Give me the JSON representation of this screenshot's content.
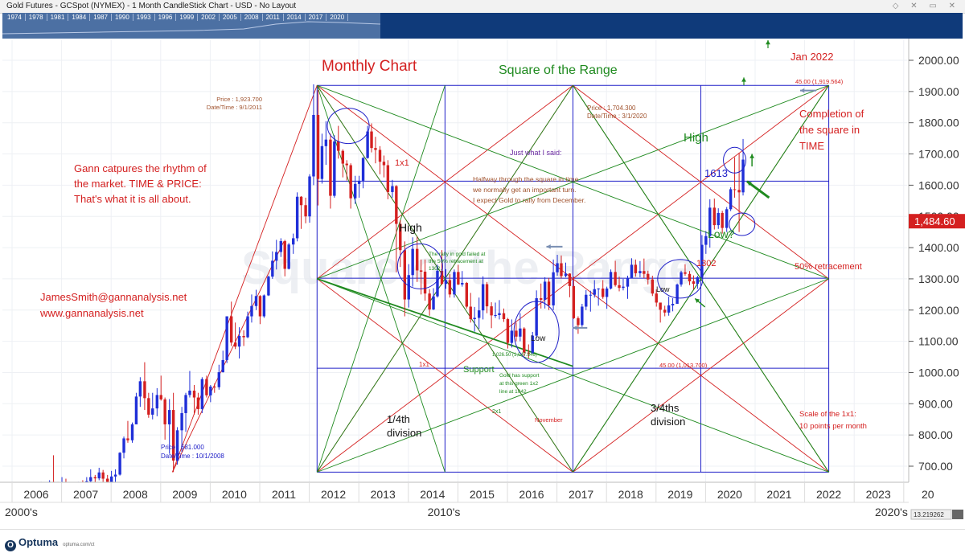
{
  "window": {
    "title": "Gold Futures - GCSpot (NYMEX) - 1 Month CandleStick Chart - USD - No Layout"
  },
  "overview": {
    "years": [
      "1974",
      "1978",
      "1981",
      "1984",
      "1987",
      "1990",
      "1993",
      "1996",
      "1999",
      "2002",
      "2005",
      "2008",
      "2011",
      "2014",
      "2017",
      "2020"
    ]
  },
  "chart_data": {
    "type": "candlestick",
    "interval": "1 Month",
    "instrument": "Gold Futures - GCSpot (NYMEX)",
    "currency": "USD",
    "y_axis": {
      "min": 640,
      "max": 2030,
      "ticks": [
        700,
        800,
        900,
        1000,
        1100,
        1200,
        1300,
        1400,
        1500,
        1600,
        1700,
        1800,
        1900,
        2000
      ],
      "labels": [
        "700.00",
        "800.00",
        "900.00",
        "1000.00",
        "1100.00",
        "1200.00",
        "1300.00",
        "1400.00",
        "1500.00",
        "1600.00",
        "1700.00",
        "1800.00",
        "1900.00",
        "2000.00"
      ]
    },
    "x_axis": {
      "years": [
        "2006",
        "2007",
        "2008",
        "2009",
        "2010",
        "2011",
        "2012",
        "2013",
        "2014",
        "2015",
        "2016",
        "2017",
        "2018",
        "2019",
        "2020",
        "2021",
        "2022",
        "2023",
        "20"
      ],
      "decades": [
        "2000's",
        "2010's",
        "2020's"
      ]
    },
    "grid": true,
    "last_price": "1,484.60",
    "scale_value": "13.219262",
    "ohlc_monthly": [
      [
        2005.94,
        513,
        565,
        505,
        562
      ],
      [
        2006.02,
        570,
        575,
        545,
        566
      ],
      [
        2006.1,
        566,
        650,
        555,
        582
      ],
      [
        2006.19,
        582,
        600,
        555,
        565
      ],
      [
        2006.27,
        565,
        655,
        560,
        650
      ],
      [
        2006.35,
        650,
        735,
        640,
        648
      ],
      [
        2006.44,
        648,
        650,
        545,
        613
      ],
      [
        2006.52,
        613,
        665,
        600,
        630
      ],
      [
        2006.6,
        630,
        660,
        615,
        623
      ],
      [
        2006.69,
        623,
        625,
        560,
        598
      ],
      [
        2006.77,
        598,
        610,
        555,
        603
      ],
      [
        2006.85,
        603,
        650,
        590,
        648
      ],
      [
        2006.94,
        648,
        655,
        615,
        632
      ],
      [
        2007.02,
        632,
        665,
        605,
        652
      ],
      [
        2007.1,
        652,
        690,
        640,
        665
      ],
      [
        2007.19,
        665,
        672,
        630,
        661
      ],
      [
        2007.27,
        661,
        695,
        655,
        680
      ],
      [
        2007.35,
        680,
        688,
        650,
        660
      ],
      [
        2007.44,
        660,
        672,
        640,
        650
      ],
      [
        2007.52,
        650,
        685,
        640,
        667
      ],
      [
        2007.6,
        667,
        690,
        650,
        673
      ],
      [
        2007.69,
        673,
        745,
        670,
        743
      ],
      [
        2007.77,
        743,
        795,
        725,
        789
      ],
      [
        2007.85,
        789,
        845,
        775,
        783
      ],
      [
        2007.94,
        783,
        840,
        775,
        834
      ],
      [
        2008.02,
        834,
        935,
        845,
        923
      ],
      [
        2008.1,
        923,
        985,
        890,
        972
      ],
      [
        2008.19,
        972,
        1033,
        880,
        918
      ],
      [
        2008.27,
        918,
        935,
        855,
        865
      ],
      [
        2008.35,
        865,
        935,
        850,
        885
      ],
      [
        2008.44,
        885,
        950,
        860,
        928
      ],
      [
        2008.52,
        928,
        990,
        910,
        914
      ],
      [
        2008.6,
        914,
        920,
        785,
        834
      ],
      [
        2008.69,
        834,
        915,
        740,
        880
      ],
      [
        2008.77,
        880,
        935,
        681,
        718
      ],
      [
        2008.85,
        718,
        825,
        705,
        815
      ],
      [
        2008.94,
        815,
        890,
        745,
        870
      ],
      [
        2009.02,
        870,
        935,
        810,
        928
      ],
      [
        2009.1,
        928,
        1005,
        920,
        942
      ],
      [
        2009.19,
        942,
        960,
        865,
        920
      ],
      [
        2009.27,
        920,
        935,
        865,
        883
      ],
      [
        2009.35,
        883,
        985,
        870,
        979
      ],
      [
        2009.44,
        979,
        990,
        920,
        927
      ],
      [
        2009.52,
        927,
        960,
        905,
        955
      ],
      [
        2009.6,
        955,
        965,
        935,
        953
      ],
      [
        2009.69,
        953,
        1025,
        945,
        1001
      ],
      [
        2009.77,
        1001,
        1070,
        1000,
        1040
      ],
      [
        2009.85,
        1040,
        1180,
        1030,
        1180
      ],
      [
        2009.94,
        1180,
        1227,
        1085,
        1096
      ],
      [
        2010.02,
        1096,
        1160,
        1075,
        1083
      ],
      [
        2010.1,
        1083,
        1145,
        1045,
        1117
      ],
      [
        2010.19,
        1117,
        1135,
        1085,
        1113
      ],
      [
        2010.27,
        1113,
        1195,
        1110,
        1180
      ],
      [
        2010.35,
        1180,
        1250,
        1160,
        1213
      ],
      [
        2010.44,
        1213,
        1265,
        1200,
        1245
      ],
      [
        2010.52,
        1245,
        1248,
        1155,
        1180
      ],
      [
        2010.6,
        1180,
        1250,
        1175,
        1247
      ],
      [
        2010.69,
        1247,
        1310,
        1245,
        1307
      ],
      [
        2010.77,
        1307,
        1388,
        1300,
        1358
      ],
      [
        2010.85,
        1358,
        1425,
        1330,
        1386
      ],
      [
        2010.94,
        1386,
        1430,
        1370,
        1421
      ],
      [
        2011.02,
        1421,
        1425,
        1308,
        1332
      ],
      [
        2011.1,
        1332,
        1415,
        1330,
        1410
      ],
      [
        2011.19,
        1410,
        1445,
        1380,
        1430
      ],
      [
        2011.27,
        1430,
        1577,
        1420,
        1563
      ],
      [
        2011.35,
        1563,
        1565,
        1460,
        1536
      ],
      [
        2011.44,
        1536,
        1560,
        1478,
        1500
      ],
      [
        2011.52,
        1500,
        1635,
        1480,
        1628
      ],
      [
        2011.6,
        1628,
        1923,
        1600,
        1825
      ],
      [
        2011.69,
        1825,
        1905,
        1535,
        1620
      ],
      [
        2011.77,
        1620,
        1765,
        1605,
        1725
      ],
      [
        2011.85,
        1725,
        1805,
        1665,
        1746
      ],
      [
        2011.94,
        1746,
        1765,
        1525,
        1566
      ],
      [
        2012.02,
        1566,
        1760,
        1560,
        1740
      ],
      [
        2012.1,
        1740,
        1790,
        1685,
        1710
      ],
      [
        2012.19,
        1710,
        1715,
        1625,
        1669
      ],
      [
        2012.27,
        1669,
        1680,
        1615,
        1664
      ],
      [
        2012.35,
        1664,
        1670,
        1525,
        1558
      ],
      [
        2012.44,
        1558,
        1630,
        1540,
        1604
      ],
      [
        2012.52,
        1604,
        1630,
        1560,
        1614
      ],
      [
        2012.6,
        1614,
        1690,
        1590,
        1687
      ],
      [
        2012.69,
        1687,
        1790,
        1685,
        1772
      ],
      [
        2012.77,
        1772,
        1798,
        1705,
        1719
      ],
      [
        2012.85,
        1719,
        1755,
        1670,
        1713
      ],
      [
        2012.94,
        1713,
        1725,
        1635,
        1675
      ],
      [
        2013.02,
        1675,
        1695,
        1625,
        1664
      ],
      [
        2013.1,
        1664,
        1680,
        1555,
        1578
      ],
      [
        2013.19,
        1578,
        1617,
        1560,
        1597
      ],
      [
        2013.27,
        1597,
        1600,
        1321,
        1476
      ],
      [
        2013.35,
        1476,
        1488,
        1338,
        1392
      ],
      [
        2013.44,
        1392,
        1420,
        1180,
        1234
      ],
      [
        2013.52,
        1234,
        1347,
        1208,
        1312
      ],
      [
        2013.6,
        1312,
        1433,
        1275,
        1396
      ],
      [
        2013.69,
        1396,
        1435,
        1290,
        1327
      ],
      [
        2013.77,
        1327,
        1362,
        1250,
        1323
      ],
      [
        2013.85,
        1323,
        1362,
        1230,
        1253
      ],
      [
        2013.94,
        1253,
        1267,
        1182,
        1202
      ],
      [
        2014.02,
        1202,
        1270,
        1200,
        1244
      ],
      [
        2014.1,
        1244,
        1345,
        1240,
        1326
      ],
      [
        2014.19,
        1326,
        1392,
        1280,
        1284
      ],
      [
        2014.27,
        1284,
        1331,
        1268,
        1296
      ],
      [
        2014.35,
        1296,
        1315,
        1240,
        1250
      ],
      [
        2014.44,
        1250,
        1330,
        1240,
        1322
      ],
      [
        2014.52,
        1322,
        1345,
        1280,
        1282
      ],
      [
        2014.6,
        1282,
        1325,
        1275,
        1287
      ],
      [
        2014.69,
        1287,
        1290,
        1205,
        1211
      ],
      [
        2014.77,
        1211,
        1255,
        1160,
        1171
      ],
      [
        2014.85,
        1171,
        1210,
        1131,
        1175
      ],
      [
        2014.94,
        1175,
        1240,
        1140,
        1199
      ],
      [
        2015.02,
        1199,
        1308,
        1170,
        1283
      ],
      [
        2015.1,
        1283,
        1290,
        1190,
        1212
      ],
      [
        2015.19,
        1212,
        1225,
        1142,
        1183
      ],
      [
        2015.27,
        1183,
        1224,
        1175,
        1184
      ],
      [
        2015.35,
        1184,
        1232,
        1170,
        1190
      ],
      [
        2015.44,
        1190,
        1205,
        1162,
        1171
      ],
      [
        2015.52,
        1171,
        1175,
        1077,
        1095
      ],
      [
        2015.6,
        1095,
        1170,
        1080,
        1134
      ],
      [
        2015.69,
        1134,
        1160,
        1100,
        1115
      ],
      [
        2015.77,
        1115,
        1190,
        1100,
        1141
      ],
      [
        2015.85,
        1141,
        1145,
        1052,
        1064
      ],
      [
        2015.94,
        1064,
        1090,
        1046,
        1061
      ],
      [
        2016.02,
        1061,
        1130,
        1062,
        1118
      ],
      [
        2016.1,
        1118,
        1263,
        1110,
        1238
      ],
      [
        2016.19,
        1238,
        1285,
        1205,
        1233
      ],
      [
        2016.27,
        1233,
        1305,
        1205,
        1291
      ],
      [
        2016.35,
        1291,
        1303,
        1200,
        1215
      ],
      [
        2016.44,
        1215,
        1362,
        1200,
        1321
      ],
      [
        2016.52,
        1321,
        1377,
        1310,
        1350
      ],
      [
        2016.6,
        1350,
        1375,
        1301,
        1309
      ],
      [
        2016.69,
        1309,
        1352,
        1305,
        1317
      ],
      [
        2016.77,
        1317,
        1318,
        1241,
        1277
      ],
      [
        2016.85,
        1277,
        1307,
        1172,
        1174
      ],
      [
        2016.94,
        1174,
        1180,
        1124,
        1152
      ],
      [
        2017.02,
        1152,
        1220,
        1146,
        1211
      ],
      [
        2017.1,
        1211,
        1264,
        1200,
        1249
      ],
      [
        2017.19,
        1249,
        1262,
        1195,
        1249
      ],
      [
        2017.27,
        1249,
        1296,
        1240,
        1267
      ],
      [
        2017.35,
        1267,
        1270,
        1214,
        1269
      ],
      [
        2017.44,
        1269,
        1296,
        1236,
        1242
      ],
      [
        2017.52,
        1242,
        1275,
        1204,
        1269
      ],
      [
        2017.6,
        1269,
        1330,
        1266,
        1322
      ],
      [
        2017.69,
        1322,
        1358,
        1275,
        1280
      ],
      [
        2017.77,
        1280,
        1307,
        1260,
        1271
      ],
      [
        2017.85,
        1271,
        1300,
        1263,
        1275
      ],
      [
        2017.94,
        1275,
        1310,
        1236,
        1303
      ],
      [
        2018.02,
        1303,
        1366,
        1305,
        1345
      ],
      [
        2018.1,
        1345,
        1362,
        1307,
        1318
      ],
      [
        2018.19,
        1318,
        1357,
        1305,
        1325
      ],
      [
        2018.27,
        1325,
        1365,
        1302,
        1316
      ],
      [
        2018.35,
        1316,
        1326,
        1282,
        1298
      ],
      [
        2018.44,
        1298,
        1310,
        1245,
        1253
      ],
      [
        2018.52,
        1253,
        1266,
        1211,
        1224
      ],
      [
        2018.6,
        1224,
        1220,
        1160,
        1201
      ],
      [
        2018.69,
        1201,
        1214,
        1180,
        1192
      ],
      [
        2018.77,
        1192,
        1243,
        1182,
        1215
      ],
      [
        2018.85,
        1215,
        1238,
        1196,
        1220
      ],
      [
        2018.94,
        1220,
        1285,
        1221,
        1282
      ],
      [
        2019.02,
        1282,
        1326,
        1275,
        1321
      ],
      [
        2019.1,
        1321,
        1347,
        1310,
        1316
      ],
      [
        2019.19,
        1316,
        1325,
        1280,
        1292
      ],
      [
        2019.27,
        1292,
        1311,
        1266,
        1284
      ],
      [
        2019.35,
        1284,
        1310,
        1268,
        1305
      ],
      [
        2019.44,
        1305,
        1440,
        1300,
        1409
      ],
      [
        2019.52,
        1409,
        1453,
        1380,
        1437
      ],
      [
        2019.6,
        1437,
        1555,
        1400,
        1528
      ],
      [
        2019.69,
        1528,
        1557,
        1458,
        1472
      ],
      [
        2019.77,
        1472,
        1526,
        1460,
        1511
      ],
      [
        2019.85,
        1511,
        1518,
        1445,
        1463
      ],
      [
        2019.94,
        1463,
        1530,
        1450,
        1523
      ],
      [
        2020.02,
        1523,
        1593,
        1517,
        1587
      ],
      [
        2020.1,
        1587,
        1689,
        1560,
        1585
      ],
      [
        2020.19,
        1585,
        1704,
        1450,
        1577
      ],
      [
        2020.27,
        1577,
        1748,
        1567,
        1682
      ]
    ]
  },
  "annotations": {
    "monthly_chart": "Monthly Chart",
    "square_range": "Square of the Range",
    "gann_text": [
      "Gann catpures the rhythm of",
      "the market.  TIME & PRICE:",
      "That's what it is all about."
    ],
    "contact": [
      "JamesSmith@gannanalysis.net",
      "www.gannanalysis.net"
    ],
    "price_high": [
      "Price : 1,923.700",
      "Date/Time : 9/1/2011"
    ],
    "price_low": [
      "Price : 681.000",
      "Date/Time : 10/1/2008"
    ],
    "price_2020": [
      "Price : 1,704.300",
      "Date/Time : 3/1/2020"
    ],
    "just_said": "Just what I said:",
    "halfway": [
      "Halfway through the square in time",
      "we normally get an important turn.",
      "I expect Gold to rally from December."
    ],
    "rally_failed": [
      "The rally in gold failed at",
      "the 50% retracement at",
      "1302."
    ],
    "support_note": [
      "Gold has support",
      "at this green 1x2",
      "line at 1042"
    ],
    "support": "Support",
    "low_level": "1,026.50 (1,047.846)",
    "high": "High",
    "low": "Low",
    "low_q": "Low?",
    "one_x_one": "1x1",
    "two_x_one": "2x1",
    "november": "November",
    "quarter": [
      "1/4th",
      "division"
    ],
    "three_quarter": [
      "3/4ths",
      "division"
    ],
    "level_1613": "1613",
    "level_1302": "1302",
    "fifty_retrace": "50% retracement",
    "completion": [
      "Completion of",
      "the square in",
      "TIME"
    ],
    "jan2022": "Jan 2022",
    "level_45_top": "45.00 (1,919.564)",
    "level_45_bottom": "45.00 (1,013.700)",
    "scale_note": [
      "Scale of the 1x1:",
      "10 points per month"
    ],
    "watermark": "Square of the Range"
  },
  "colors": {
    "bull": "#1f2fd8",
    "bear": "#d42020",
    "green": "#1f8a1f",
    "red": "#d42020",
    "blue": "#2020c8",
    "brown": "#a0522d",
    "purple": "#6a2aa0"
  },
  "logo": {
    "name": "Optuma",
    "url": "optuma.com/ct"
  }
}
